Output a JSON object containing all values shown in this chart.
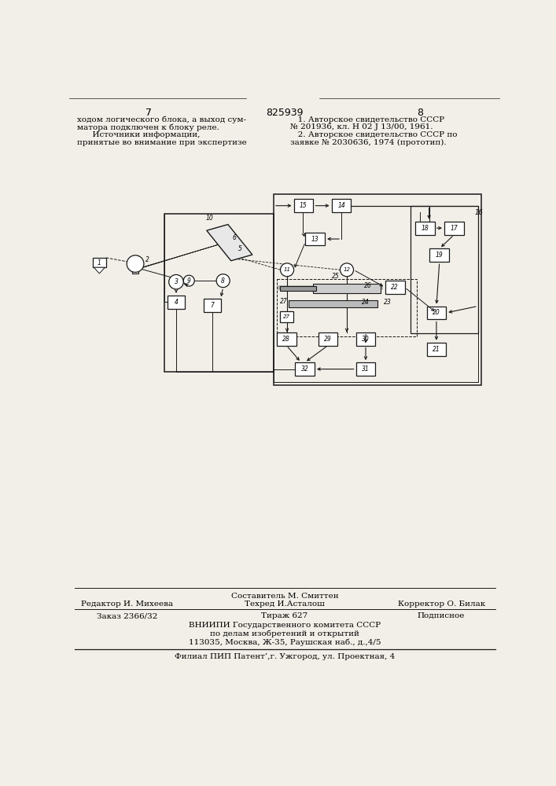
{
  "bg_color": "#f2efe8",
  "page_num_left": "7",
  "page_num_center": "825939",
  "page_num_right": "8",
  "top_left_lines": [
    "ходом логического блока, а выход сум-",
    "матора подключен к блоку реле.",
    "      Источники информации,",
    "принятые во внимание при экспертизе"
  ],
  "top_right_lines": [
    "   1. Авторское свидетельство СССР",
    "№ 201936, кл. Н 02 J 13/00, 1961.",
    "   2. Авторское свидетельство СССР по",
    "заявке № 2030636, 1974 (прототип)."
  ],
  "composer": "Составитель М. Смиттен",
  "editor": "Редактор И. Михеева",
  "tech": "Техред И.Асталош",
  "corrector": "Корректор О. Билак",
  "order": "Заказ 2366/32",
  "circulation": "Тираж 627",
  "subscription": "Подписное",
  "vniiipi1": "ВНИИПИ Государственного комитета СССР",
  "vniiipi2": "по делам изобретений и открытий",
  "vniiipi3": "113035, Москва, Ж-35, Раушская наб., д.,4/5",
  "filial": "Филиал ПИП Патент’,г. Ужгород, ул. Проектная, 4"
}
